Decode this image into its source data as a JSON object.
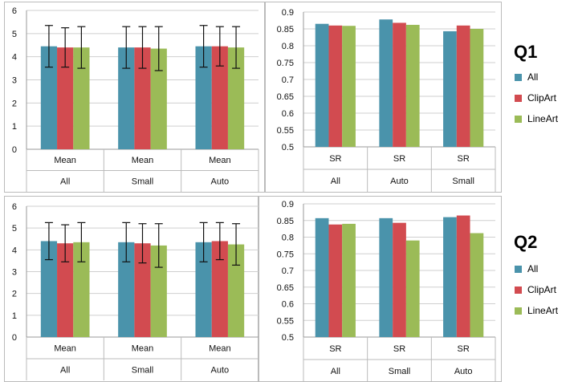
{
  "colors": {
    "All": "#4a93ab",
    "ClipArt": "#d24b50",
    "LineArt": "#9bbb57"
  },
  "series_names": [
    "All",
    "ClipArt",
    "LineArt"
  ],
  "panels": [
    {
      "question_label": "Q1",
      "mean_chart": {
        "type": "bar",
        "ylim": [
          0,
          6
        ],
        "yticks": [
          "0",
          "1",
          "2",
          "3",
          "4",
          "5",
          "6"
        ],
        "groups": [
          {
            "row1": "Mean",
            "row2": "All"
          },
          {
            "row1": "Mean",
            "row2": "Small"
          },
          {
            "row1": "Mean",
            "row2": "Auto"
          }
        ],
        "series": [
          {
            "name": "All",
            "values": [
              4.45,
              4.4,
              4.45
            ],
            "errors": [
              0.9,
              0.9,
              0.9
            ]
          },
          {
            "name": "ClipArt",
            "values": [
              4.4,
              4.4,
              4.45
            ],
            "errors": [
              0.85,
              0.9,
              0.85
            ]
          },
          {
            "name": "LineArt",
            "values": [
              4.4,
              4.35,
              4.4
            ],
            "errors": [
              0.9,
              0.95,
              0.9
            ]
          }
        ]
      },
      "sr_chart": {
        "type": "bar",
        "ylim": [
          0.5,
          0.9
        ],
        "yticks": [
          "0.5",
          "0.55",
          "0.6",
          "0.65",
          "0.7",
          "0.75",
          "0.8",
          "0.85",
          "0.9"
        ],
        "groups": [
          {
            "row1": "SR",
            "row2": "All"
          },
          {
            "row1": "SR",
            "row2": "Auto"
          },
          {
            "row1": "SR",
            "row2": "Small"
          }
        ],
        "series": [
          {
            "name": "All",
            "values": [
              0.865,
              0.878,
              0.843
            ]
          },
          {
            "name": "ClipArt",
            "values": [
              0.86,
              0.868,
              0.86
            ]
          },
          {
            "name": "LineArt",
            "values": [
              0.859,
              0.862,
              0.85
            ]
          }
        ]
      }
    },
    {
      "question_label": "Q2",
      "mean_chart": {
        "type": "bar",
        "ylim": [
          0,
          6
        ],
        "yticks": [
          "0",
          "1",
          "2",
          "3",
          "4",
          "5",
          "6"
        ],
        "groups": [
          {
            "row1": "Mean",
            "row2": "All"
          },
          {
            "row1": "Mean",
            "row2": "Small"
          },
          {
            "row1": "Mean",
            "row2": "Auto"
          }
        ],
        "series": [
          {
            "name": "All",
            "values": [
              4.4,
              4.35,
              4.35
            ],
            "errors": [
              0.85,
              0.9,
              0.9
            ]
          },
          {
            "name": "ClipArt",
            "values": [
              4.3,
              4.3,
              4.4
            ],
            "errors": [
              0.85,
              0.9,
              0.85
            ]
          },
          {
            "name": "LineArt",
            "values": [
              4.35,
              4.2,
              4.25
            ],
            "errors": [
              0.9,
              1.0,
              0.95
            ]
          }
        ]
      },
      "sr_chart": {
        "type": "bar",
        "ylim": [
          0.5,
          0.9
        ],
        "yticks": [
          "0.5",
          "0.55",
          "0.6",
          "0.65",
          "0.7",
          "0.75",
          "0.8",
          "0.85",
          "0.9"
        ],
        "groups": [
          {
            "row1": "SR",
            "row2": "All"
          },
          {
            "row1": "SR",
            "row2": "Small"
          },
          {
            "row1": "SR",
            "row2": "Auto"
          }
        ],
        "series": [
          {
            "name": "All",
            "values": [
              0.857,
              0.857,
              0.86
            ]
          },
          {
            "name": "ClipArt",
            "values": [
              0.838,
              0.843,
              0.865
            ]
          },
          {
            "name": "LineArt",
            "values": [
              0.84,
              0.79,
              0.812
            ]
          }
        ]
      }
    }
  ],
  "chart_data": [
    {
      "type": "bar",
      "categories": [
        "Mean All",
        "Mean Small",
        "Mean Auto"
      ],
      "ylim": [
        0,
        6
      ],
      "series": [
        {
          "name": "All",
          "values": [
            4.45,
            4.4,
            4.45
          ]
        },
        {
          "name": "ClipArt",
          "values": [
            4.4,
            4.4,
            4.45
          ]
        },
        {
          "name": "LineArt",
          "values": [
            4.4,
            4.35,
            4.4
          ]
        }
      ]
    },
    {
      "type": "bar",
      "categories": [
        "SR All",
        "SR Auto",
        "SR Small"
      ],
      "ylim": [
        0.5,
        0.9
      ],
      "series": [
        {
          "name": "All",
          "values": [
            0.865,
            0.878,
            0.843
          ]
        },
        {
          "name": "ClipArt",
          "values": [
            0.86,
            0.868,
            0.86
          ]
        },
        {
          "name": "LineArt",
          "values": [
            0.859,
            0.862,
            0.85
          ]
        }
      ]
    },
    {
      "type": "bar",
      "categories": [
        "Mean All",
        "Mean Small",
        "Mean Auto"
      ],
      "ylim": [
        0,
        6
      ],
      "series": [
        {
          "name": "All",
          "values": [
            4.4,
            4.35,
            4.35
          ]
        },
        {
          "name": "ClipArt",
          "values": [
            4.3,
            4.3,
            4.4
          ]
        },
        {
          "name": "LineArt",
          "values": [
            4.35,
            4.2,
            4.25
          ]
        }
      ]
    },
    {
      "type": "bar",
      "categories": [
        "SR All",
        "SR Small",
        "SR Auto"
      ],
      "ylim": [
        0.5,
        0.9
      ],
      "series": [
        {
          "name": "All",
          "values": [
            0.857,
            0.857,
            0.86
          ]
        },
        {
          "name": "ClipArt",
          "values": [
            0.838,
            0.843,
            0.865
          ]
        },
        {
          "name": "LineArt",
          "values": [
            0.84,
            0.79,
            0.812
          ]
        }
      ]
    }
  ]
}
